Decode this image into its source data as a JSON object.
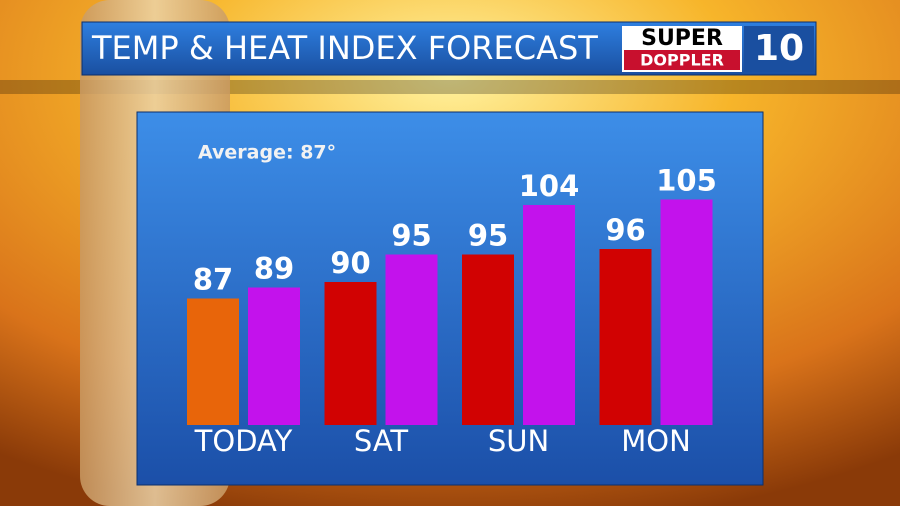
{
  "chart_data": {
    "type": "bar",
    "title": "TEMP & HEAT INDEX FORECAST",
    "annotation": "Average: 87°",
    "logo": {
      "top": "SUPER",
      "bottom": "DOPPLER",
      "number": "10"
    },
    "categories": [
      "TODAY",
      "SAT",
      "SUN",
      "MON"
    ],
    "series": [
      {
        "colors": [
          "#e8650a",
          "#d10202",
          "#d10202",
          "#d10202"
        ],
        "values": [
          87,
          90,
          95,
          96
        ]
      },
      {
        "color": "#c312ec",
        "values": [
          89,
          95,
          104,
          105
        ]
      }
    ],
    "ylim": [
      64,
      120
    ]
  }
}
